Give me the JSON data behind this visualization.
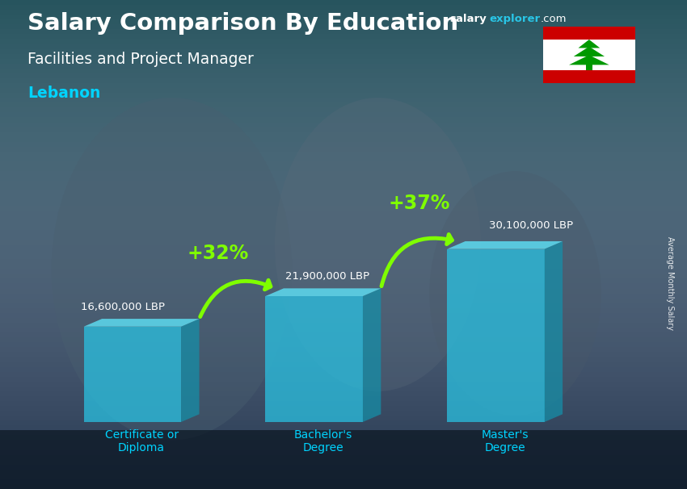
{
  "title_main": "Salary Comparison By Education",
  "title_sub": "Facilities and Project Manager",
  "title_country": "Lebanon",
  "categories": [
    "Certificate or\nDiploma",
    "Bachelor's\nDegree",
    "Master's\nDegree"
  ],
  "values": [
    16600000,
    21900000,
    30100000
  ],
  "value_labels": [
    "16,600,000 LBP",
    "21,900,000 LBP",
    "30,100,000 LBP"
  ],
  "pct_changes": [
    "+32%",
    "+37%"
  ],
  "bar_front_color": "#29c5e6",
  "bar_top_color": "#5de0f5",
  "bar_side_color": "#1490aa",
  "bar_alpha": 0.72,
  "bg_color": "#2c3e50",
  "title_color": "#ffffff",
  "subtitle_color": "#ffffff",
  "country_color": "#00d4ff",
  "value_label_color": "#ffffff",
  "pct_color": "#7fff00",
  "arrow_color": "#7fff00",
  "cat_label_color": "#00d4ff",
  "ylabel_text": "Average Monthly Salary",
  "ylabel_color": "#ffffff",
  "brand_salary_color": "#ffffff",
  "brand_explorer_color": "#29c5e6",
  "brand_com_color": "#ffffff",
  "flag_red": "#cc0000",
  "flag_white": "#ffffff",
  "flag_green": "#009900"
}
